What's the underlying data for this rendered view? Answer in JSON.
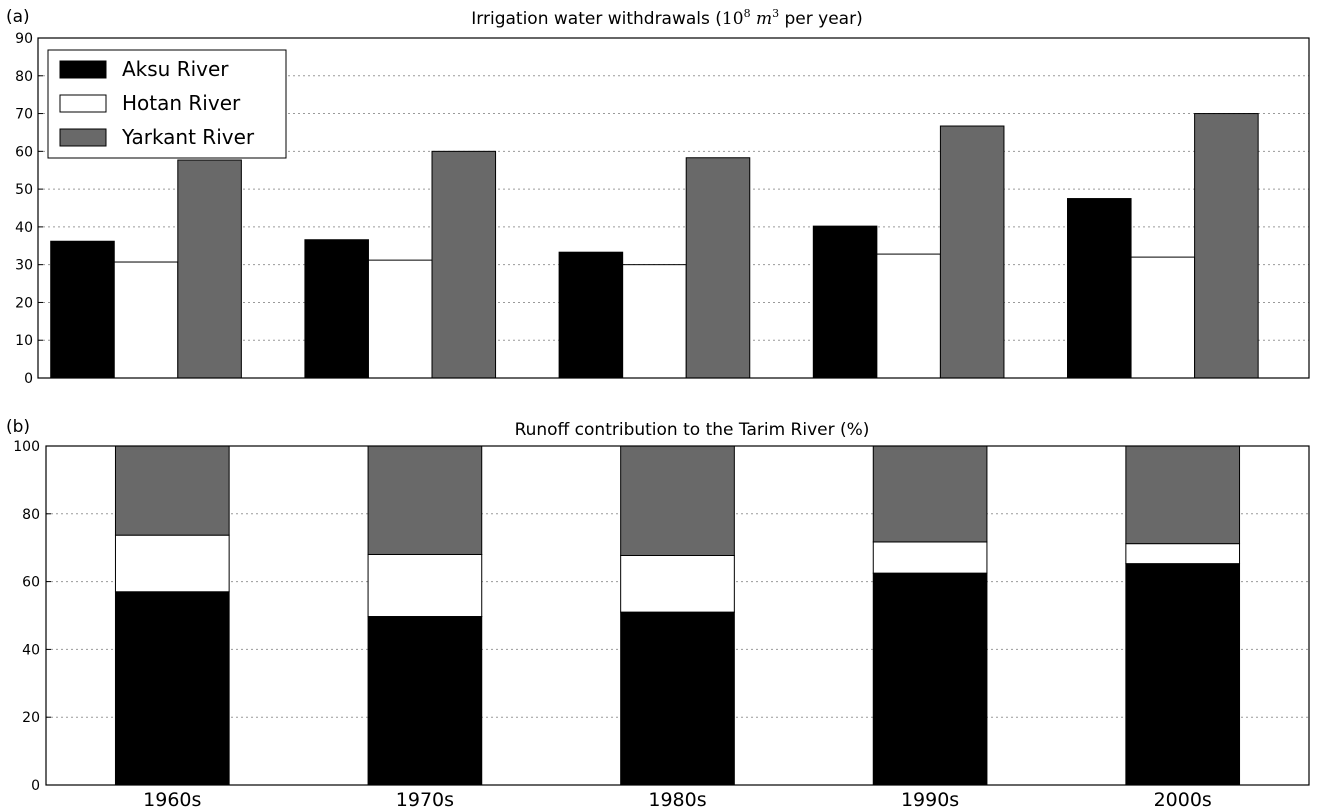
{
  "chart_data": [
    {
      "panel": "(a)",
      "type": "bar",
      "title_text": "Irrigation water withdrawals (",
      "title_math_base": "10",
      "title_math_exp": "8",
      "title_math_unit": "m",
      "title_math_unit_exp": "3",
      "title_tail": " per year)",
      "categories": [
        "1960s",
        "1970s",
        "1980s",
        "1990s",
        "2000s"
      ],
      "series": [
        {
          "name": "Aksu River",
          "color": "#000000",
          "values": [
            36.2,
            36.6,
            33.3,
            40.2,
            47.5
          ]
        },
        {
          "name": "Hotan River",
          "color": "#ffffff",
          "values": [
            30.7,
            31.2,
            30.0,
            32.8,
            32.0
          ]
        },
        {
          "name": "Yarkant River",
          "color": "#696969",
          "values": [
            57.7,
            60.0,
            58.3,
            66.7,
            70.0
          ]
        }
      ],
      "ylim": [
        0,
        90
      ],
      "yticks": [
        0,
        10,
        20,
        30,
        40,
        50,
        60,
        70,
        80,
        90
      ],
      "grid": true,
      "legend": "top-left"
    },
    {
      "panel": "(b)",
      "type": "bar",
      "stacked": true,
      "title": "Runoff contribution to the Tarim River (%)",
      "categories": [
        "1960s",
        "1970s",
        "1980s",
        "1990s",
        "2000s"
      ],
      "series": [
        {
          "name": "Aksu River",
          "color": "#000000",
          "values": [
            57.0,
            49.7,
            51.0,
            62.5,
            65.3
          ]
        },
        {
          "name": "Hotan River",
          "color": "#ffffff",
          "values": [
            16.7,
            18.3,
            16.7,
            9.2,
            5.9
          ]
        },
        {
          "name": "Yarkant River",
          "color": "#696969",
          "values": [
            26.3,
            32.0,
            32.3,
            28.3,
            28.8
          ]
        }
      ],
      "ylim": [
        0,
        100
      ],
      "yticks": [
        0,
        20,
        40,
        60,
        80,
        100
      ],
      "grid": true
    }
  ]
}
